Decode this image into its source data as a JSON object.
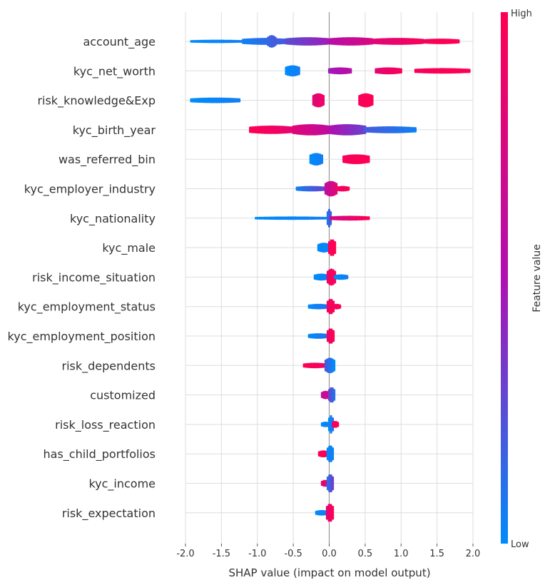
{
  "chart_data": {
    "type": "scatter",
    "xlabel": "SHAP value (impact on model output)",
    "xlim": [
      -2.0,
      2.0
    ],
    "xticks": [
      "-2.0",
      "-1.5",
      "-1.0",
      "-0.5",
      "0.0",
      "0.5",
      "1.0",
      "1.5",
      "2.0"
    ],
    "xtick_values": [
      -2.0,
      -1.5,
      -1.0,
      -0.5,
      0.0,
      0.5,
      1.0,
      1.5,
      2.0
    ],
    "grid": true,
    "colorbar": {
      "label": "Feature value",
      "high": "High",
      "low": "Low",
      "color_high": "#ff0052",
      "color_low": "#008bfb",
      "color_mid": "#b010b0"
    },
    "features": [
      {
        "name": "account_age",
        "segments": [
          {
            "x0": -1.92,
            "x1": -1.2,
            "c0": 0.0,
            "c1": 0.05,
            "h": 5
          },
          {
            "x0": -1.2,
            "x1": -0.6,
            "c0": 0.05,
            "c1": 0.2,
            "h": 10
          },
          {
            "x0": -0.85,
            "x1": -0.75,
            "c0": 0.15,
            "c1": 0.2,
            "h": 18
          },
          {
            "x0": -0.6,
            "x1": 0.0,
            "c0": 0.25,
            "c1": 0.45,
            "h": 12
          },
          {
            "x0": 0.0,
            "x1": 0.6,
            "c0": 0.55,
            "c1": 0.75,
            "h": 12
          },
          {
            "x0": 0.6,
            "x1": 1.3,
            "c0": 0.8,
            "c1": 0.95,
            "h": 10
          },
          {
            "x0": 1.3,
            "x1": 1.8,
            "c0": 0.95,
            "c1": 1.0,
            "h": 8
          }
        ]
      },
      {
        "name": "kyc_net_worth",
        "segments": [
          {
            "x0": -0.6,
            "x1": -0.42,
            "c0": 0.0,
            "c1": 0.05,
            "h": 16
          },
          {
            "x0": 0.0,
            "x1": 0.3,
            "c0": 0.45,
            "c1": 0.55,
            "h": 10
          },
          {
            "x0": 0.65,
            "x1": 1.0,
            "c0": 0.85,
            "c1": 0.95,
            "h": 10
          },
          {
            "x0": 1.2,
            "x1": 1.95,
            "c0": 0.95,
            "c1": 1.0,
            "h": 8
          }
        ]
      },
      {
        "name": "risk_knowledge&Exp",
        "segments": [
          {
            "x0": -1.92,
            "x1": -1.25,
            "c0": 0.0,
            "c1": 0.05,
            "h": 8
          },
          {
            "x0": -0.22,
            "x1": -0.08,
            "c0": 0.8,
            "c1": 0.9,
            "h": 20
          },
          {
            "x0": 0.42,
            "x1": 0.6,
            "c0": 0.95,
            "c1": 1.0,
            "h": 20
          }
        ]
      },
      {
        "name": "kyc_birth_year",
        "segments": [
          {
            "x0": -1.1,
            "x1": -0.5,
            "c0": 1.0,
            "c1": 0.85,
            "h": 12
          },
          {
            "x0": -0.5,
            "x1": 0.0,
            "c0": 0.8,
            "c1": 0.6,
            "h": 16
          },
          {
            "x0": 0.0,
            "x1": 0.5,
            "c0": 0.5,
            "c1": 0.3,
            "h": 16
          },
          {
            "x0": 0.5,
            "x1": 1.2,
            "c0": 0.2,
            "c1": 0.05,
            "h": 10
          }
        ]
      },
      {
        "name": "was_referred_bin",
        "segments": [
          {
            "x0": -0.26,
            "x1": -0.1,
            "c0": 0.0,
            "c1": 0.05,
            "h": 18
          },
          {
            "x0": 0.2,
            "x1": 0.55,
            "c0": 0.95,
            "c1": 1.0,
            "h": 14
          }
        ]
      },
      {
        "name": "kyc_employer_industry",
        "segments": [
          {
            "x0": -0.45,
            "x1": -0.05,
            "c0": 0.05,
            "c1": 0.3,
            "h": 8
          },
          {
            "x0": -0.05,
            "x1": 0.1,
            "c0": 0.6,
            "c1": 0.8,
            "h": 22
          },
          {
            "x0": 0.1,
            "x1": 0.27,
            "c0": 0.9,
            "c1": 1.0,
            "h": 8
          }
        ]
      },
      {
        "name": "kyc_nationality",
        "segments": [
          {
            "x0": -1.02,
            "x1": -0.02,
            "c0": 0.0,
            "c1": 0.05,
            "h": 5
          },
          {
            "x0": -0.02,
            "x1": 0.02,
            "c0": 0.1,
            "c1": 0.2,
            "h": 26
          },
          {
            "x0": 0.02,
            "x1": 0.55,
            "c0": 0.7,
            "c1": 1.0,
            "h": 7
          }
        ]
      },
      {
        "name": "kyc_male",
        "segments": [
          {
            "x0": -0.15,
            "x1": 0.0,
            "c0": 0.0,
            "c1": 0.05,
            "h": 14
          },
          {
            "x0": 0.0,
            "x1": 0.08,
            "c0": 0.95,
            "c1": 1.0,
            "h": 24
          }
        ]
      },
      {
        "name": "risk_income_situation",
        "segments": [
          {
            "x0": -0.2,
            "x1": -0.02,
            "c0": 0.0,
            "c1": 0.05,
            "h": 10
          },
          {
            "x0": -0.02,
            "x1": 0.08,
            "c0": 0.9,
            "c1": 1.0,
            "h": 24
          },
          {
            "x0": 0.08,
            "x1": 0.25,
            "c0": 0.0,
            "c1": 0.05,
            "h": 8
          }
        ]
      },
      {
        "name": "kyc_employment_status",
        "segments": [
          {
            "x0": -0.28,
            "x1": -0.02,
            "c0": 0.0,
            "c1": 0.1,
            "h": 8
          },
          {
            "x0": -0.02,
            "x1": 0.06,
            "c0": 0.9,
            "c1": 1.0,
            "h": 22
          },
          {
            "x0": 0.06,
            "x1": 0.15,
            "c0": 0.9,
            "c1": 1.0,
            "h": 8
          }
        ]
      },
      {
        "name": "kyc_employment_position",
        "segments": [
          {
            "x0": -0.28,
            "x1": -0.02,
            "c0": 0.0,
            "c1": 0.1,
            "h": 8
          },
          {
            "x0": -0.02,
            "x1": 0.06,
            "c0": 0.9,
            "c1": 1.0,
            "h": 22
          }
        ]
      },
      {
        "name": "risk_dependents",
        "segments": [
          {
            "x0": -0.35,
            "x1": -0.05,
            "c0": 1.0,
            "c1": 0.9,
            "h": 8
          },
          {
            "x0": -0.05,
            "x1": 0.07,
            "c0": 0.2,
            "c1": 0.0,
            "h": 22
          }
        ]
      },
      {
        "name": "customized",
        "segments": [
          {
            "x0": -0.1,
            "x1": 0.0,
            "c0": 0.6,
            "c1": 0.7,
            "h": 12
          },
          {
            "x0": 0.0,
            "x1": 0.07,
            "c0": 0.3,
            "c1": 0.1,
            "h": 22
          }
        ]
      },
      {
        "name": "risk_loss_reaction",
        "segments": [
          {
            "x0": -0.1,
            "x1": 0.0,
            "c0": 0.0,
            "c1": 0.05,
            "h": 8
          },
          {
            "x0": 0.0,
            "x1": 0.05,
            "c0": 0.0,
            "c1": 0.1,
            "h": 26
          },
          {
            "x0": 0.05,
            "x1": 0.12,
            "c0": 0.9,
            "c1": 1.0,
            "h": 10
          }
        ]
      },
      {
        "name": "has_child_portfolios",
        "segments": [
          {
            "x0": -0.14,
            "x1": -0.02,
            "c0": 1.0,
            "c1": 0.95,
            "h": 10
          },
          {
            "x0": -0.02,
            "x1": 0.05,
            "c0": 0.0,
            "c1": 0.05,
            "h": 24
          }
        ]
      },
      {
        "name": "kyc_income",
        "segments": [
          {
            "x0": -0.1,
            "x1": -0.02,
            "c0": 0.8,
            "c1": 0.9,
            "h": 10
          },
          {
            "x0": -0.02,
            "x1": 0.05,
            "c0": 0.1,
            "c1": 0.3,
            "h": 26
          }
        ]
      },
      {
        "name": "risk_expectation",
        "segments": [
          {
            "x0": -0.18,
            "x1": -0.03,
            "c0": 0.0,
            "c1": 0.05,
            "h": 8
          },
          {
            "x0": -0.03,
            "x1": 0.05,
            "c0": 0.8,
            "c1": 1.0,
            "h": 26
          }
        ]
      }
    ]
  }
}
